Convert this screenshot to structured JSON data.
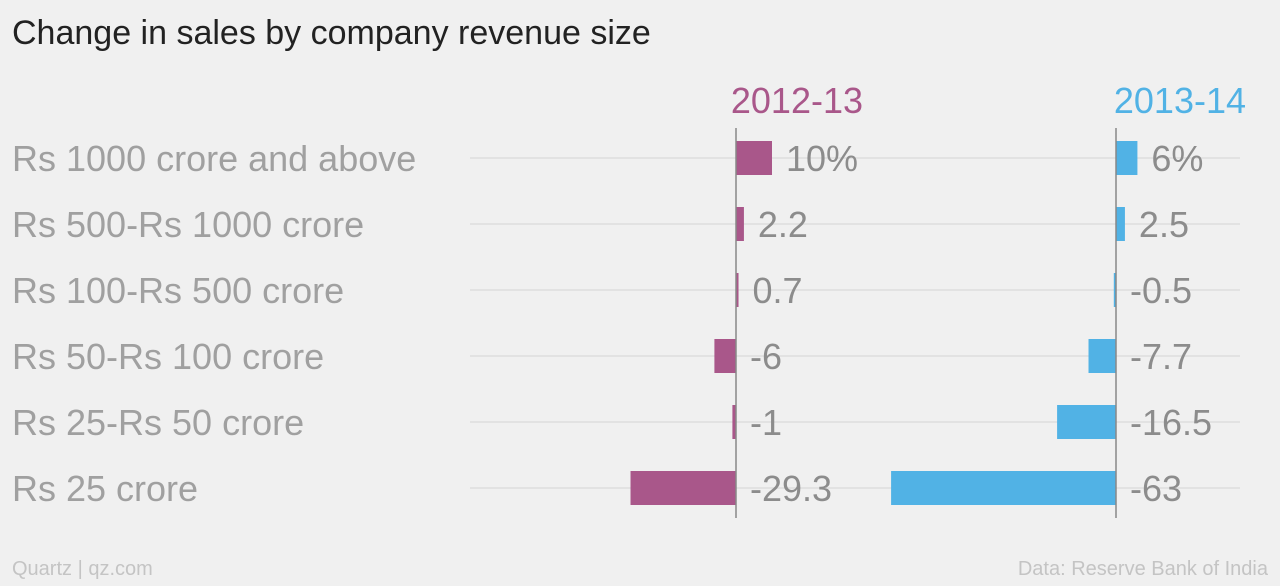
{
  "chart_data": {
    "type": "bar",
    "title": "Change in sales by company revenue size",
    "categories": [
      "Rs 1000 crore and above",
      "Rs 500-Rs 1000 crore",
      "Rs 100-Rs 500 crore",
      "Rs 50-Rs 100 crore",
      "Rs 25-Rs 50 crore",
      "Rs 25 crore"
    ],
    "series": [
      {
        "name": "2012-13",
        "values": [
          10,
          2.2,
          0.7,
          -6,
          -1,
          -29.3
        ],
        "labels": [
          "10%",
          "2.2",
          "0.7",
          "-6",
          "-1",
          "-29.3"
        ],
        "color": "#a9578a"
      },
      {
        "name": "2013-14",
        "values": [
          6,
          2.5,
          -0.5,
          -7.7,
          -16.5,
          -63
        ],
        "labels": [
          "6%",
          "2.5",
          "-0.5",
          "-7.7",
          "-16.5",
          "-63"
        ],
        "color": "#51b2e5"
      }
    ],
    "orientation": "horizontal",
    "grid": true
  },
  "footer": {
    "source_left": "Quartz | qz.com",
    "source_right": "Data: Reserve Bank of India"
  }
}
